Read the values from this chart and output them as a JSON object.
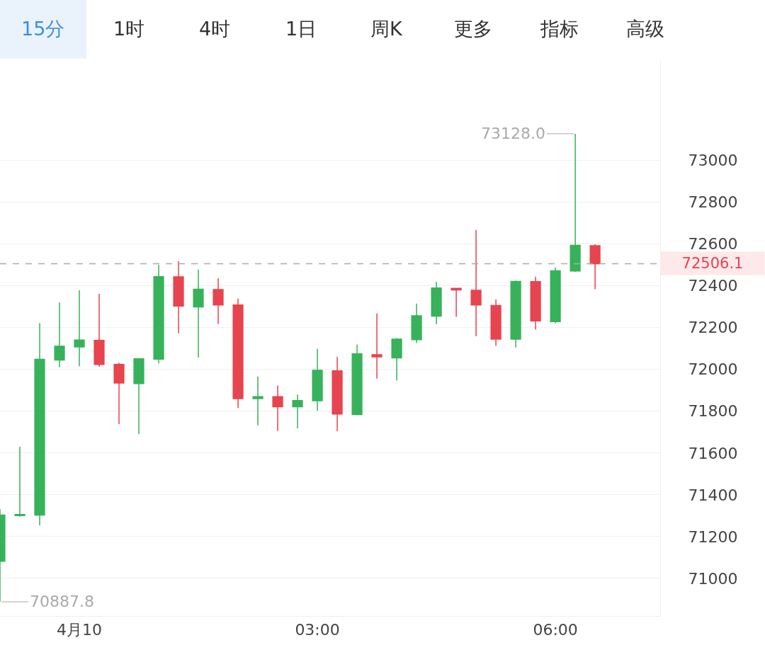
{
  "chart_data": {
    "type": "candlestick",
    "x": [
      -1,
      -0.75,
      -0.5,
      -0.25,
      0,
      0.25,
      0.5,
      0.75,
      1,
      1.25,
      1.5,
      1.75,
      2,
      2.25,
      2.5,
      2.75,
      3,
      3.25,
      3.5,
      3.75,
      4,
      4.25,
      4.5,
      4.75,
      5,
      5.25,
      5.5,
      5.75,
      6,
      6.25,
      6.5
    ],
    "ohlc": [
      [
        71082,
        71332,
        70887.8,
        71303
      ],
      [
        71300,
        71630,
        71295,
        71305
      ],
      [
        71303,
        72221,
        71254,
        72048
      ],
      [
        72045,
        72320,
        72011,
        72111
      ],
      [
        72108,
        72379,
        72015,
        72141
      ],
      [
        72139,
        72362,
        72013,
        72024
      ],
      [
        72024,
        72032,
        71738,
        71935
      ],
      [
        71932,
        72053,
        71690,
        72051
      ],
      [
        72049,
        72501,
        72029,
        72444
      ],
      [
        72443,
        72518,
        72173,
        72303
      ],
      [
        72299,
        72478,
        72057,
        72384
      ],
      [
        72382,
        72436,
        72218,
        72308
      ],
      [
        72308,
        72339,
        71815,
        71860
      ],
      [
        71860,
        71966,
        71732,
        71870
      ],
      [
        71870,
        71923,
        71706,
        71821
      ],
      [
        71821,
        71880,
        71718,
        71851
      ],
      [
        71850,
        72099,
        71802,
        71996
      ],
      [
        71993,
        72060,
        71704,
        71787
      ],
      [
        71784,
        72119,
        71781,
        72075
      ],
      [
        72070,
        72268,
        71956,
        72060
      ],
      [
        72055,
        72150,
        71947,
        72145
      ],
      [
        72142,
        72315,
        72126,
        72257
      ],
      [
        72255,
        72419,
        72216,
        72390
      ],
      [
        72388,
        72388,
        72252,
        72380
      ],
      [
        72379,
        72668,
        72159,
        72308
      ],
      [
        72306,
        72335,
        72113,
        72145
      ],
      [
        72145,
        72425,
        72105,
        72421
      ],
      [
        72420,
        72444,
        72191,
        72232
      ],
      [
        72229,
        72489,
        72221,
        72472
      ],
      [
        72471,
        73128,
        72467,
        72594
      ],
      [
        72592,
        72599,
        72384,
        72506.1
      ]
    ],
    "colors": [
      "#37b25b",
      "#37b25b",
      "#37b25b",
      "#37b25b",
      "#37b25b",
      "#e6444f",
      "#e6444f",
      "#37b25b",
      "#37b25b",
      "#e6444f",
      "#37b25b",
      "#e6444f",
      "#e6444f",
      "#37b25b",
      "#e6444f",
      "#37b25b",
      "#37b25b",
      "#e6444f",
      "#37b25b",
      "#e6444f",
      "#37b25b",
      "#37b25b",
      "#37b25b",
      "#e6444f",
      "#e6444f",
      "#e6444f",
      "#37b25b",
      "#e6444f",
      "#37b25b",
      "#37b25b",
      "#e6444f"
    ],
    "xlim": [
      -1,
      7.32
    ],
    "xticks": [
      {
        "value": 0,
        "label": "4月10"
      },
      {
        "value": 3,
        "label": "03:00"
      },
      {
        "value": 6,
        "label": "06:00"
      }
    ],
    "ylim": [
      70820,
      73480
    ],
    "yticks": [
      71000,
      71200,
      71400,
      71600,
      71800,
      72000,
      72200,
      72400,
      72600,
      72800,
      73000
    ],
    "grid": "y",
    "ref_lines": [
      {
        "axis": "y",
        "value": 72506.1,
        "label": "72506.1",
        "color": "#aaaaaa",
        "line_style": "dashed"
      }
    ],
    "annotations": [
      "15分",
      "1时",
      "4时",
      "1日",
      "周K",
      "更多",
      "指标",
      "高级",
      {
        "text": "73128.0",
        "x": 6.25,
        "y": 73128
      },
      {
        "text": "70887.8",
        "x": -1,
        "y": 70887.8
      }
    ]
  }
}
